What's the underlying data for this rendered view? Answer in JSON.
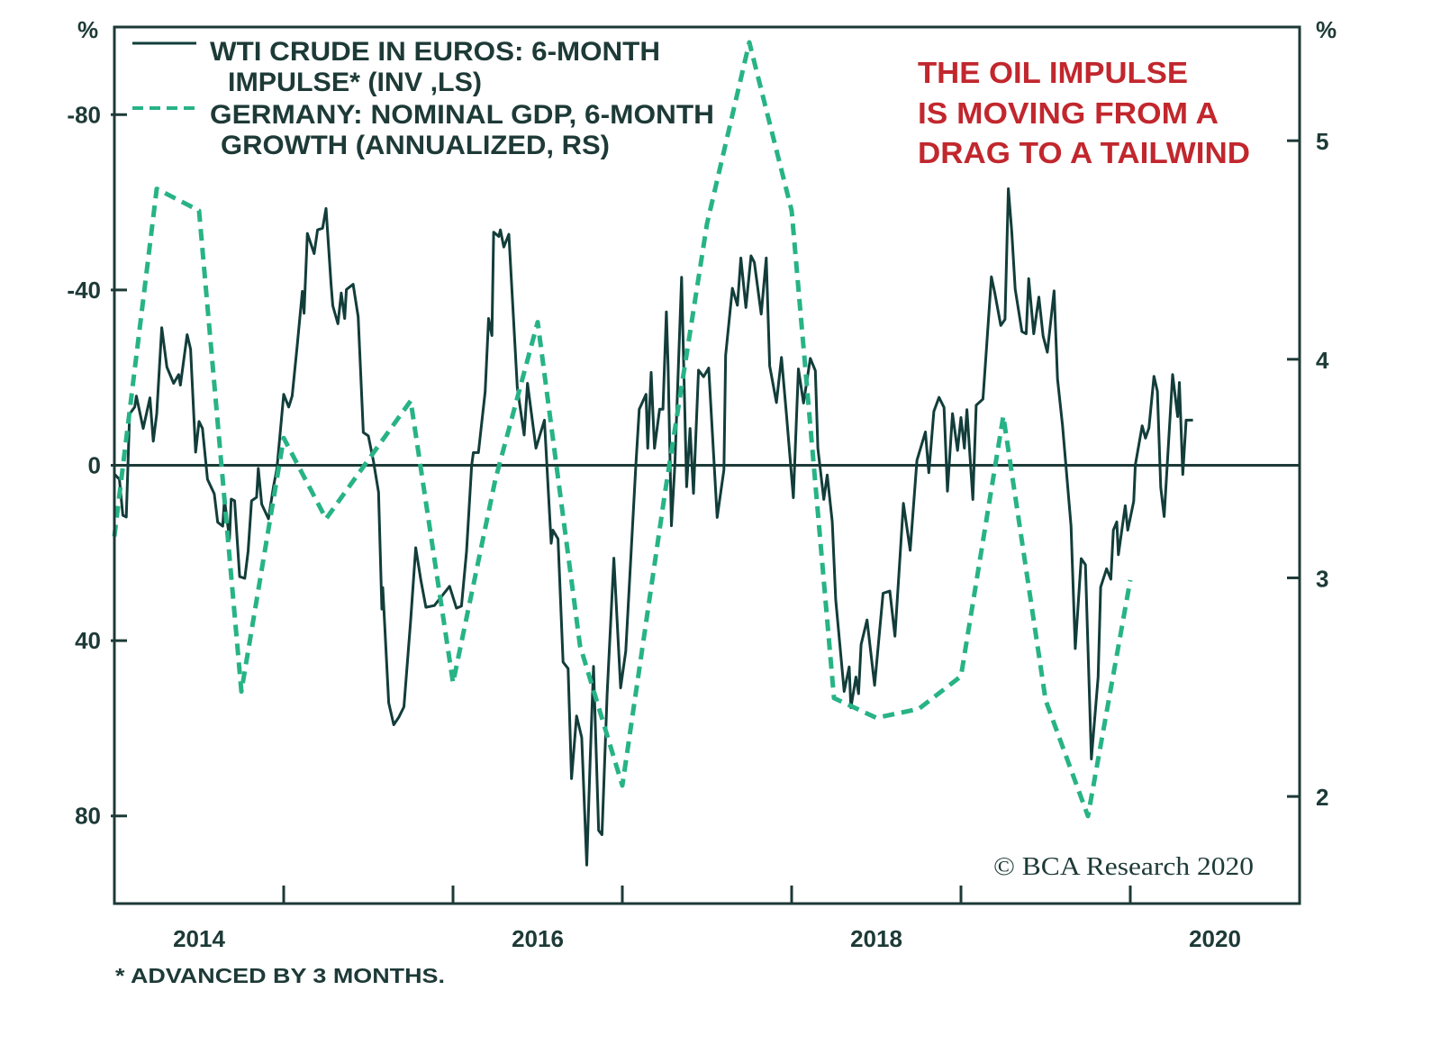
{
  "colors": {
    "axis": "#1d3a37",
    "wti_line": "#123d3a",
    "gdp_line": "#27b386",
    "annotation": "#c1272d"
  },
  "legend": {
    "wti_line1": "WTI CRUDE IN EUROS: 6-MONTH",
    "wti_line2": "IMPULSE* (INV ,LS)",
    "gdp_line1": "GERMANY: NOMINAL GDP, 6-MONTH",
    "gdp_line2": "GROWTH (ANNUALIZED, RS)"
  },
  "annotation": {
    "line1": "THE OIL IMPULSE",
    "line2": "IS MOVING FROM A",
    "line3": "DRAG TO A TAILWIND"
  },
  "footnote": "* ADVANCED BY 3 MONTHS.",
  "copyright": "© BCA Research 2020",
  "chart_data": {
    "type": "line",
    "title": "",
    "xlabel": "",
    "xlim": [
      2014,
      2021
    ],
    "x_ticks": [
      2015,
      2016,
      2017,
      2018,
      2019,
      2020
    ],
    "x_tick_labels": [
      {
        "label": "2014",
        "at": 2014.5
      },
      {
        "label": "2016",
        "at": 2016.5
      },
      {
        "label": "2018",
        "at": 2018.5
      },
      {
        "label": "2020",
        "at": 2020.5
      }
    ],
    "left_axis": {
      "unit_label": "%",
      "ylim": [
        -100,
        100
      ],
      "inverted": true,
      "ticks": [
        -80,
        -40,
        0,
        40,
        80
      ],
      "tick_labels": [
        "-80",
        "-40",
        "0",
        "40",
        "80"
      ]
    },
    "right_axis": {
      "unit_label": "%",
      "ylim": [
        1.51,
        5.52
      ],
      "ticks": [
        2,
        3,
        4,
        5
      ],
      "tick_labels": [
        "2",
        "3",
        "4",
        "5"
      ]
    },
    "zero_line": 0,
    "legend_position": "top-left",
    "series": [
      {
        "name": "WTI CRUDE IN EUROS: 6-MONTH IMPULSE* (INV ,LS)",
        "axis": "left",
        "style": "solid",
        "points": [
          [
            2014.0,
            2
          ],
          [
            2014.03,
            3.2
          ],
          [
            2014.05,
            11.4
          ],
          [
            2014.07,
            11.8
          ],
          [
            2014.09,
            -11.7
          ],
          [
            2014.12,
            -13.3
          ],
          [
            2014.13,
            -15.8
          ],
          [
            2014.17,
            -8.4
          ],
          [
            2014.21,
            -15.4
          ],
          [
            2014.23,
            -5.5
          ],
          [
            2014.25,
            -11.7
          ],
          [
            2014.28,
            -31.4
          ],
          [
            2014.31,
            -22.4
          ],
          [
            2014.35,
            -18.7
          ],
          [
            2014.38,
            -20.7
          ],
          [
            2014.39,
            -18.3
          ],
          [
            2014.43,
            -29.8
          ],
          [
            2014.45,
            -26.5
          ],
          [
            2014.48,
            -3.0
          ],
          [
            2014.5,
            -10.0
          ],
          [
            2014.52,
            -8.4
          ],
          [
            2014.55,
            3.2
          ],
          [
            2014.59,
            6.5
          ],
          [
            2014.61,
            13.0
          ],
          [
            2014.64,
            13.9
          ],
          [
            2014.65,
            7.7
          ],
          [
            2014.68,
            16.8
          ],
          [
            2014.69,
            7.7
          ],
          [
            2014.71,
            8.1
          ],
          [
            2014.74,
            25.4
          ],
          [
            2014.77,
            25.8
          ],
          [
            2014.79,
            19.6
          ],
          [
            2014.81,
            8.1
          ],
          [
            2014.84,
            7.3
          ],
          [
            2014.85,
            0.7
          ],
          [
            2014.87,
            8.9
          ],
          [
            2014.91,
            12.2
          ],
          [
            2014.94,
            4.8
          ],
          [
            2014.96,
            0.7
          ],
          [
            2015.0,
            -16.2
          ],
          [
            2015.03,
            -13.3
          ],
          [
            2015.05,
            -15.8
          ],
          [
            2015.08,
            -27.3
          ],
          [
            2015.11,
            -39.7
          ],
          [
            2015.12,
            -34.7
          ],
          [
            2015.14,
            -52.9
          ],
          [
            2015.18,
            -48.3
          ],
          [
            2015.2,
            -53.7
          ],
          [
            2015.23,
            -54.1
          ],
          [
            2015.25,
            -58.6
          ],
          [
            2015.28,
            -41.3
          ],
          [
            2015.29,
            -36.4
          ],
          [
            2015.32,
            -32.3
          ],
          [
            2015.34,
            -39.3
          ],
          [
            2015.36,
            -33.5
          ],
          [
            2015.37,
            -40.1
          ],
          [
            2015.41,
            -41.3
          ],
          [
            2015.44,
            -33.9
          ],
          [
            2015.47,
            -7.5
          ],
          [
            2015.5,
            -6.7
          ],
          [
            2015.53,
            -1.0
          ],
          [
            2015.56,
            6.1
          ],
          [
            2015.58,
            32.8
          ],
          [
            2015.585,
            27.9
          ],
          [
            2015.62,
            54.2
          ],
          [
            2015.65,
            59.2
          ],
          [
            2015.68,
            57.5
          ],
          [
            2015.71,
            55.1
          ],
          [
            2015.75,
            35.3
          ],
          [
            2015.78,
            18.8
          ],
          [
            2015.81,
            26.2
          ],
          [
            2015.84,
            32.4
          ],
          [
            2015.89,
            32.0
          ],
          [
            2015.98,
            27.6
          ],
          [
            2016.02,
            32.6
          ],
          [
            2016.05,
            32.1
          ],
          [
            2016.08,
            19.7
          ],
          [
            2016.11,
            0
          ],
          [
            2016.12,
            -2.9
          ],
          [
            2016.15,
            -2.9
          ],
          [
            2016.19,
            -16.8
          ],
          [
            2016.21,
            -33.5
          ],
          [
            2016.23,
            -29.6
          ],
          [
            2016.24,
            -53.2
          ],
          [
            2016.27,
            -52.2
          ],
          [
            2016.28,
            -53.7
          ],
          [
            2016.3,
            -49.8
          ],
          [
            2016.33,
            -52.7
          ],
          [
            2016.38,
            -17.7
          ],
          [
            2016.42,
            -6.9
          ],
          [
            2016.44,
            -18.7
          ],
          [
            2016.49,
            -3.9
          ],
          [
            2016.54,
            -10.3
          ],
          [
            2016.58,
            17.8
          ],
          [
            2016.59,
            14.8
          ],
          [
            2016.62,
            16.8
          ],
          [
            2016.65,
            44.9
          ],
          [
            2016.68,
            46.4
          ],
          [
            2016.7,
            71.5
          ],
          [
            2016.73,
            57.2
          ],
          [
            2016.76,
            62.1
          ],
          [
            2016.79,
            91.2
          ],
          [
            2016.81,
            67.1
          ],
          [
            2016.83,
            45.9
          ],
          [
            2016.86,
            83.3
          ],
          [
            2016.88,
            84.3
          ],
          [
            2016.91,
            52.3
          ],
          [
            2016.95,
            21.2
          ],
          [
            2016.99,
            50.8
          ],
          [
            2017.02,
            42.4
          ],
          [
            2017.08,
            0
          ],
          [
            2017.1,
            -12.8
          ],
          [
            2017.14,
            -16.2
          ],
          [
            2017.15,
            -3.9
          ],
          [
            2017.17,
            -21.2
          ],
          [
            2017.19,
            -3.9
          ],
          [
            2017.22,
            -12.8
          ],
          [
            2017.24,
            -12.8
          ],
          [
            2017.26,
            -35.0
          ],
          [
            2017.27,
            -22.7
          ],
          [
            2017.29,
            13.8
          ],
          [
            2017.31,
            0
          ],
          [
            2017.35,
            -42.9
          ],
          [
            2017.38,
            4.9
          ],
          [
            2017.4,
            -8.4
          ],
          [
            2017.42,
            6.4
          ],
          [
            2017.45,
            -21.7
          ],
          [
            2017.48,
            -20.2
          ],
          [
            2017.51,
            -22.2
          ],
          [
            2017.56,
            11.9
          ],
          [
            2017.6,
            1.0
          ],
          [
            2017.61,
            -25.1
          ],
          [
            2017.65,
            -40.4
          ],
          [
            2017.68,
            -36.5
          ],
          [
            2017.7,
            -47.3
          ],
          [
            2017.73,
            -36.0
          ],
          [
            2017.76,
            -47.8
          ],
          [
            2017.78,
            -46.3
          ],
          [
            2017.82,
            -34.5
          ],
          [
            2017.85,
            -47.3
          ],
          [
            2017.87,
            -22.7
          ],
          [
            2017.91,
            -14.3
          ],
          [
            2017.94,
            -24.6
          ],
          [
            2017.97,
            -11.2
          ],
          [
            2018.01,
            7.4
          ],
          [
            2018.04,
            -22.0
          ],
          [
            2018.07,
            -14.2
          ],
          [
            2018.11,
            -24.4
          ],
          [
            2018.14,
            -21.6
          ],
          [
            2018.155,
            -3.9
          ],
          [
            2018.19,
            7.8
          ],
          [
            2018.21,
            2.2
          ],
          [
            2018.24,
            12.9
          ],
          [
            2018.26,
            30.6
          ],
          [
            2018.31,
            51.6
          ],
          [
            2018.34,
            46.0
          ],
          [
            2018.35,
            55.3
          ],
          [
            2018.38,
            48.3
          ],
          [
            2018.395,
            52.1
          ],
          [
            2018.41,
            40.9
          ],
          [
            2018.445,
            35.3
          ],
          [
            2018.49,
            50.2
          ],
          [
            2018.54,
            29.2
          ],
          [
            2018.58,
            28.7
          ],
          [
            2018.61,
            39.0
          ],
          [
            2018.66,
            8.7
          ],
          [
            2018.7,
            19.4
          ],
          [
            2018.74,
            -1.1
          ],
          [
            2018.79,
            -7.6
          ],
          [
            2018.81,
            1.7
          ],
          [
            2018.84,
            -12.3
          ],
          [
            2018.87,
            -15.5
          ],
          [
            2018.9,
            -13.2
          ],
          [
            2018.92,
            5.9
          ],
          [
            2018.95,
            -11.8
          ],
          [
            2018.98,
            -3.4
          ],
          [
            2019.0,
            -10.9
          ],
          [
            2019.02,
            -3.9
          ],
          [
            2019.035,
            -12.7
          ],
          [
            2019.07,
            7.8
          ],
          [
            2019.09,
            -13.7
          ],
          [
            2019.13,
            -15.1
          ],
          [
            2019.15,
            -26.3
          ],
          [
            2019.18,
            -43.0
          ],
          [
            2019.2,
            -39.3
          ],
          [
            2019.235,
            -31.9
          ],
          [
            2019.26,
            -33.3
          ],
          [
            2019.28,
            -63.1
          ],
          [
            2019.3,
            -53.3
          ],
          [
            2019.32,
            -40.2
          ],
          [
            2019.36,
            -30.5
          ],
          [
            2019.385,
            -30.0
          ],
          [
            2019.4,
            -42.6
          ],
          [
            2019.43,
            -30.0
          ],
          [
            2019.46,
            -38.4
          ],
          [
            2019.485,
            -29.5
          ],
          [
            2019.51,
            -25.8
          ],
          [
            2019.55,
            -39.8
          ],
          [
            2019.57,
            -19.7
          ],
          [
            2019.6,
            -9.0
          ],
          [
            2019.65,
            13.8
          ],
          [
            2019.675,
            41.8
          ],
          [
            2019.71,
            21.3
          ],
          [
            2019.735,
            22.7
          ],
          [
            2019.77,
            67.0
          ],
          [
            2019.81,
            48.3
          ],
          [
            2019.825,
            27.8
          ],
          [
            2019.86,
            23.6
          ],
          [
            2019.885,
            26.0
          ],
          [
            2019.9,
            14.8
          ],
          [
            2019.92,
            12.9
          ],
          [
            2019.93,
            20.4
          ],
          [
            2019.97,
            9.2
          ],
          [
            2019.985,
            14.8
          ],
          [
            2020.02,
            8.2
          ],
          [
            2020.03,
            -0.1
          ],
          [
            2020.07,
            -9.0
          ],
          [
            2020.09,
            -6.2
          ],
          [
            2020.11,
            -8.5
          ],
          [
            2020.14,
            -20.3
          ],
          [
            2020.16,
            -16.9
          ],
          [
            2020.18,
            5.0
          ],
          [
            2020.2,
            11.7
          ],
          [
            2020.25,
            -20.7
          ],
          [
            2020.28,
            -11.1
          ],
          [
            2020.29,
            -18.9
          ],
          [
            2020.31,
            2.1
          ],
          [
            2020.33,
            -10.3
          ],
          [
            2020.37,
            -10.3
          ]
        ]
      },
      {
        "name": "GERMANY: NOMINAL GDP, 6-MONTH GROWTH (ANNUALIZED, RS)",
        "axis": "right",
        "style": "dashed",
        "points": [
          [
            2014.0,
            3.19
          ],
          [
            2014.25,
            4.78
          ],
          [
            2014.5,
            4.68
          ],
          [
            2014.75,
            2.48
          ],
          [
            2015.0,
            3.64
          ],
          [
            2015.25,
            3.27
          ],
          [
            2015.5,
            3.54
          ],
          [
            2015.75,
            3.81
          ],
          [
            2016.0,
            2.52
          ],
          [
            2016.25,
            3.45
          ],
          [
            2016.5,
            4.17
          ],
          [
            2016.75,
            2.69
          ],
          [
            2017.0,
            2.05
          ],
          [
            2017.25,
            3.38
          ],
          [
            2017.5,
            4.62
          ],
          [
            2017.75,
            5.45
          ],
          [
            2018.0,
            4.68
          ],
          [
            2018.25,
            2.45
          ],
          [
            2018.5,
            2.36
          ],
          [
            2018.75,
            2.4
          ],
          [
            2019.0,
            2.55
          ],
          [
            2019.25,
            3.74
          ],
          [
            2019.5,
            2.44
          ],
          [
            2019.75,
            1.91
          ],
          [
            2020.0,
            2.99
          ]
        ]
      }
    ]
  }
}
